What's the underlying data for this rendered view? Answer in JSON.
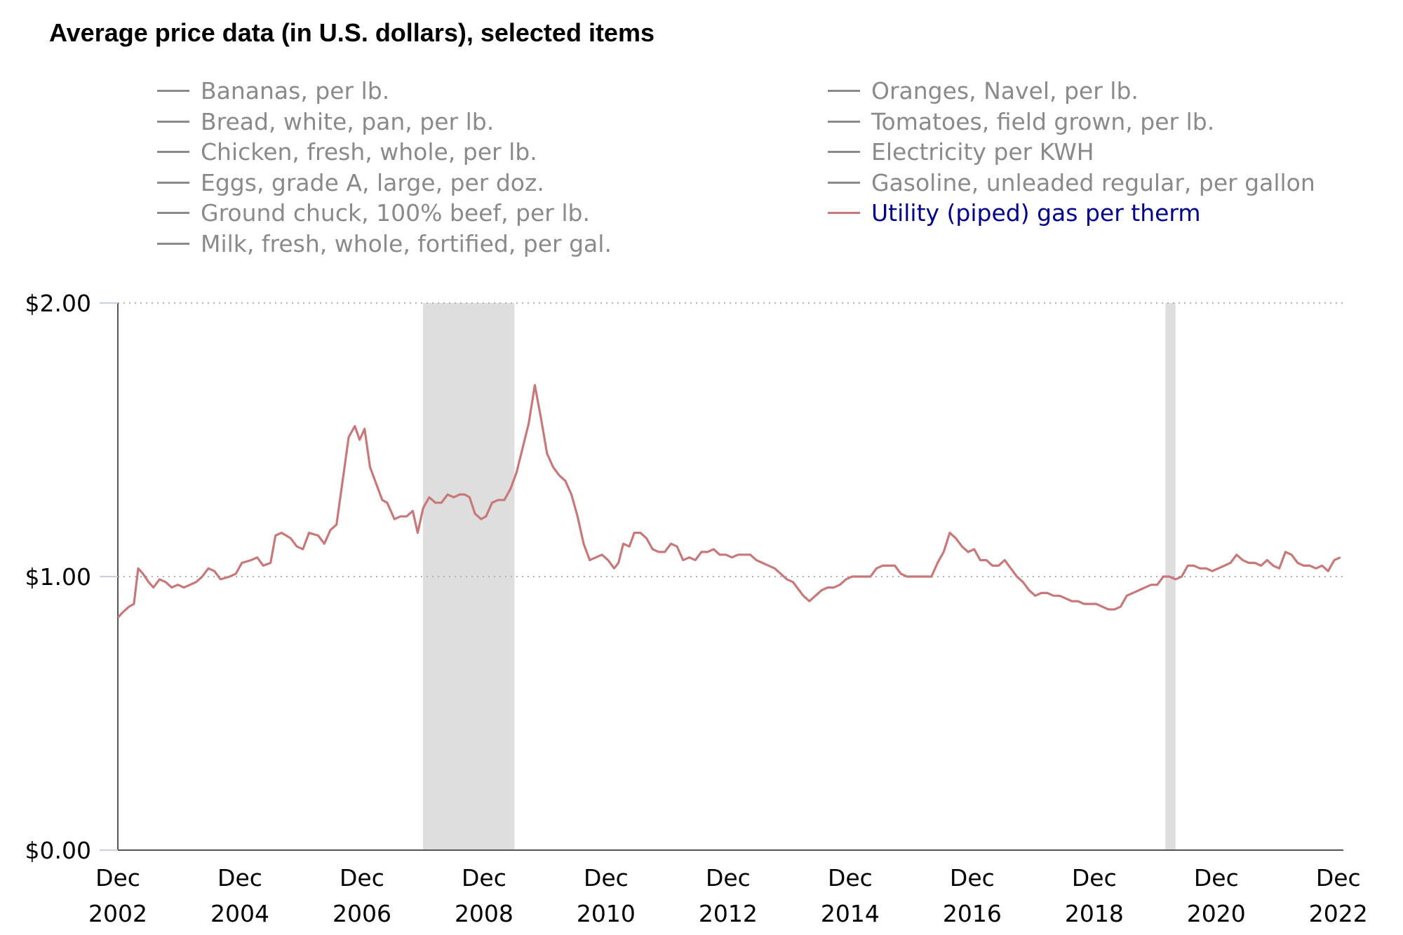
{
  "chart_data": {
    "type": "line",
    "title": "Average price data (in U.S. dollars), selected items",
    "xlabel": "",
    "ylabel": "",
    "ylim": [
      0,
      2
    ],
    "yticks": [
      {
        "value": 0,
        "label": "$0.00"
      },
      {
        "value": 1,
        "label": "$1.00"
      },
      {
        "value": 2,
        "label": "$2.00"
      }
    ],
    "xlim": [
      2002.917,
      2023.0
    ],
    "xticks": [
      {
        "value": 2002.917,
        "line1": "Dec",
        "line2": "2002"
      },
      {
        "value": 2004.917,
        "line1": "Dec",
        "line2": "2004"
      },
      {
        "value": 2006.917,
        "line1": "Dec",
        "line2": "2006"
      },
      {
        "value": 2008.917,
        "line1": "Dec",
        "line2": "2008"
      },
      {
        "value": 2010.917,
        "line1": "Dec",
        "line2": "2010"
      },
      {
        "value": 2012.917,
        "line1": "Dec",
        "line2": "2012"
      },
      {
        "value": 2014.917,
        "line1": "Dec",
        "line2": "2014"
      },
      {
        "value": 2016.917,
        "line1": "Dec",
        "line2": "2016"
      },
      {
        "value": 2018.917,
        "line1": "Dec",
        "line2": "2018"
      },
      {
        "value": 2020.917,
        "line1": "Dec",
        "line2": "2020"
      },
      {
        "value": 2022.917,
        "line1": "Dec",
        "line2": "2022"
      }
    ],
    "recessions": [
      {
        "start": 2007.917,
        "end": 2009.417
      },
      {
        "start": 2020.083,
        "end": 2020.25
      }
    ],
    "legend": {
      "left": [
        "Bananas, per lb.",
        "Bread, white, pan, per lb.",
        "Chicken, fresh, whole, per lb.",
        "Eggs, grade A, large, per doz.",
        "Ground chuck, 100% beef, per lb.",
        "Milk, fresh, whole, fortified, per gal."
      ],
      "right": [
        "Oranges, Navel, per lb.",
        "Tomatoes, field grown, per lb.",
        "Electricity per KWH",
        "Gasoline, unleaded regular, per gallon",
        "Utility (piped) gas per therm"
      ],
      "active": "Utility (piped) gas per therm"
    },
    "series": [
      {
        "name": "Utility (piped) gas per therm",
        "color": "#c87878",
        "points": [
          [
            2002.917,
            0.85
          ],
          [
            2003.0,
            0.87
          ],
          [
            2003.1,
            0.89
          ],
          [
            2003.18,
            0.9
          ],
          [
            2003.25,
            1.03
          ],
          [
            2003.33,
            1.01
          ],
          [
            2003.42,
            0.98
          ],
          [
            2003.5,
            0.96
          ],
          [
            2003.6,
            0.99
          ],
          [
            2003.7,
            0.98
          ],
          [
            2003.8,
            0.96
          ],
          [
            2003.9,
            0.97
          ],
          [
            2004.0,
            0.96
          ],
          [
            2004.1,
            0.97
          ],
          [
            2004.2,
            0.98
          ],
          [
            2004.3,
            1.0
          ],
          [
            2004.4,
            1.03
          ],
          [
            2004.5,
            1.02
          ],
          [
            2004.6,
            0.99
          ],
          [
            2004.75,
            1.0
          ],
          [
            2004.85,
            1.01
          ],
          [
            2004.95,
            1.05
          ],
          [
            2005.1,
            1.06
          ],
          [
            2005.2,
            1.07
          ],
          [
            2005.3,
            1.04
          ],
          [
            2005.42,
            1.05
          ],
          [
            2005.5,
            1.15
          ],
          [
            2005.6,
            1.16
          ],
          [
            2005.75,
            1.14
          ],
          [
            2005.85,
            1.11
          ],
          [
            2005.95,
            1.1
          ],
          [
            2006.05,
            1.16
          ],
          [
            2006.2,
            1.15
          ],
          [
            2006.3,
            1.12
          ],
          [
            2006.4,
            1.17
          ],
          [
            2006.5,
            1.19
          ],
          [
            2006.6,
            1.35
          ],
          [
            2006.7,
            1.51
          ],
          [
            2006.8,
            1.55
          ],
          [
            2006.88,
            1.5
          ],
          [
            2006.96,
            1.54
          ],
          [
            2007.05,
            1.4
          ],
          [
            2007.15,
            1.34
          ],
          [
            2007.25,
            1.28
          ],
          [
            2007.33,
            1.27
          ],
          [
            2007.45,
            1.21
          ],
          [
            2007.55,
            1.22
          ],
          [
            2007.65,
            1.22
          ],
          [
            2007.75,
            1.24
          ],
          [
            2007.83,
            1.16
          ],
          [
            2007.92,
            1.25
          ],
          [
            2008.02,
            1.29
          ],
          [
            2008.12,
            1.27
          ],
          [
            2008.22,
            1.27
          ],
          [
            2008.32,
            1.3
          ],
          [
            2008.42,
            1.29
          ],
          [
            2008.52,
            1.3
          ],
          [
            2008.6,
            1.3
          ],
          [
            2008.68,
            1.29
          ],
          [
            2008.77,
            1.23
          ],
          [
            2008.87,
            1.21
          ],
          [
            2008.95,
            1.22
          ],
          [
            2009.05,
            1.27
          ],
          [
            2009.15,
            1.28
          ],
          [
            2009.25,
            1.28
          ],
          [
            2009.35,
            1.32
          ],
          [
            2009.45,
            1.38
          ],
          [
            2009.55,
            1.47
          ],
          [
            2009.65,
            1.56
          ],
          [
            2009.75,
            1.7
          ],
          [
            2009.85,
            1.58
          ],
          [
            2009.95,
            1.45
          ],
          [
            2010.05,
            1.4
          ],
          [
            2010.15,
            1.37
          ],
          [
            2010.25,
            1.35
          ],
          [
            2010.35,
            1.3
          ],
          [
            2010.45,
            1.22
          ],
          [
            2010.55,
            1.12
          ],
          [
            2010.65,
            1.06
          ],
          [
            2010.75,
            1.07
          ],
          [
            2010.85,
            1.08
          ],
          [
            2010.95,
            1.06
          ],
          [
            2011.05,
            1.03
          ],
          [
            2011.12,
            1.05
          ],
          [
            2011.2,
            1.12
          ],
          [
            2011.3,
            1.11
          ],
          [
            2011.38,
            1.16
          ],
          [
            2011.48,
            1.16
          ],
          [
            2011.58,
            1.14
          ],
          [
            2011.68,
            1.1
          ],
          [
            2011.78,
            1.09
          ],
          [
            2011.88,
            1.09
          ],
          [
            2011.98,
            1.12
          ],
          [
            2012.08,
            1.11
          ],
          [
            2012.18,
            1.06
          ],
          [
            2012.28,
            1.07
          ],
          [
            2012.38,
            1.06
          ],
          [
            2012.48,
            1.09
          ],
          [
            2012.58,
            1.09
          ],
          [
            2012.68,
            1.1
          ],
          [
            2012.78,
            1.08
          ],
          [
            2012.88,
            1.08
          ],
          [
            2012.98,
            1.07
          ],
          [
            2013.08,
            1.08
          ],
          [
            2013.18,
            1.08
          ],
          [
            2013.28,
            1.08
          ],
          [
            2013.38,
            1.06
          ],
          [
            2013.48,
            1.05
          ],
          [
            2013.58,
            1.04
          ],
          [
            2013.68,
            1.03
          ],
          [
            2013.78,
            1.01
          ],
          [
            2013.88,
            0.99
          ],
          [
            2013.98,
            0.98
          ],
          [
            2014.08,
            0.95
          ],
          [
            2014.15,
            0.93
          ],
          [
            2014.25,
            0.91
          ],
          [
            2014.35,
            0.93
          ],
          [
            2014.45,
            0.95
          ],
          [
            2014.55,
            0.96
          ],
          [
            2014.65,
            0.96
          ],
          [
            2014.75,
            0.97
          ],
          [
            2014.85,
            0.99
          ],
          [
            2014.95,
            1.0
          ],
          [
            2015.05,
            1.0
          ],
          [
            2015.15,
            1.0
          ],
          [
            2015.25,
            1.0
          ],
          [
            2015.35,
            1.03
          ],
          [
            2015.45,
            1.04
          ],
          [
            2015.55,
            1.04
          ],
          [
            2015.65,
            1.04
          ],
          [
            2015.75,
            1.01
          ],
          [
            2015.85,
            1.0
          ],
          [
            2015.95,
            1.0
          ],
          [
            2016.05,
            1.0
          ],
          [
            2016.15,
            1.0
          ],
          [
            2016.25,
            1.0
          ],
          [
            2016.35,
            1.05
          ],
          [
            2016.45,
            1.09
          ],
          [
            2016.55,
            1.16
          ],
          [
            2016.65,
            1.14
          ],
          [
            2016.75,
            1.11
          ],
          [
            2016.85,
            1.09
          ],
          [
            2016.95,
            1.1
          ],
          [
            2017.05,
            1.06
          ],
          [
            2017.15,
            1.06
          ],
          [
            2017.25,
            1.04
          ],
          [
            2017.35,
            1.04
          ],
          [
            2017.45,
            1.06
          ],
          [
            2017.55,
            1.03
          ],
          [
            2017.65,
            1.0
          ],
          [
            2017.75,
            0.98
          ],
          [
            2017.85,
            0.95
          ],
          [
            2017.95,
            0.93
          ],
          [
            2018.05,
            0.94
          ],
          [
            2018.15,
            0.94
          ],
          [
            2018.25,
            0.93
          ],
          [
            2018.35,
            0.93
          ],
          [
            2018.45,
            0.92
          ],
          [
            2018.55,
            0.91
          ],
          [
            2018.65,
            0.91
          ],
          [
            2018.75,
            0.9
          ],
          [
            2018.85,
            0.9
          ],
          [
            2018.95,
            0.9
          ],
          [
            2019.05,
            0.89
          ],
          [
            2019.15,
            0.88
          ],
          [
            2019.25,
            0.88
          ],
          [
            2019.35,
            0.89
          ],
          [
            2019.45,
            0.93
          ],
          [
            2019.55,
            0.94
          ],
          [
            2019.65,
            0.95
          ],
          [
            2019.75,
            0.96
          ],
          [
            2019.85,
            0.97
          ],
          [
            2019.95,
            0.97
          ],
          [
            2020.05,
            1.0
          ],
          [
            2020.15,
            1.0
          ],
          [
            2020.25,
            0.99
          ],
          [
            2020.35,
            1.0
          ],
          [
            2020.45,
            1.04
          ],
          [
            2020.55,
            1.04
          ],
          [
            2020.65,
            1.03
          ],
          [
            2020.75,
            1.03
          ],
          [
            2020.85,
            1.02
          ],
          [
            2020.95,
            1.03
          ],
          [
            2021.05,
            1.04
          ],
          [
            2021.15,
            1.05
          ],
          [
            2021.25,
            1.08
          ],
          [
            2021.35,
            1.06
          ],
          [
            2021.45,
            1.05
          ],
          [
            2021.55,
            1.05
          ],
          [
            2021.65,
            1.04
          ],
          [
            2021.75,
            1.06
          ],
          [
            2021.85,
            1.04
          ],
          [
            2021.95,
            1.03
          ],
          [
            2022.05,
            1.09
          ],
          [
            2022.15,
            1.08
          ],
          [
            2022.25,
            1.05
          ],
          [
            2022.35,
            1.04
          ],
          [
            2022.45,
            1.04
          ],
          [
            2022.55,
            1.03
          ],
          [
            2022.65,
            1.04
          ],
          [
            2022.75,
            1.02
          ],
          [
            2022.85,
            1.06
          ],
          [
            2022.95,
            1.07
          ]
        ]
      }
    ]
  }
}
